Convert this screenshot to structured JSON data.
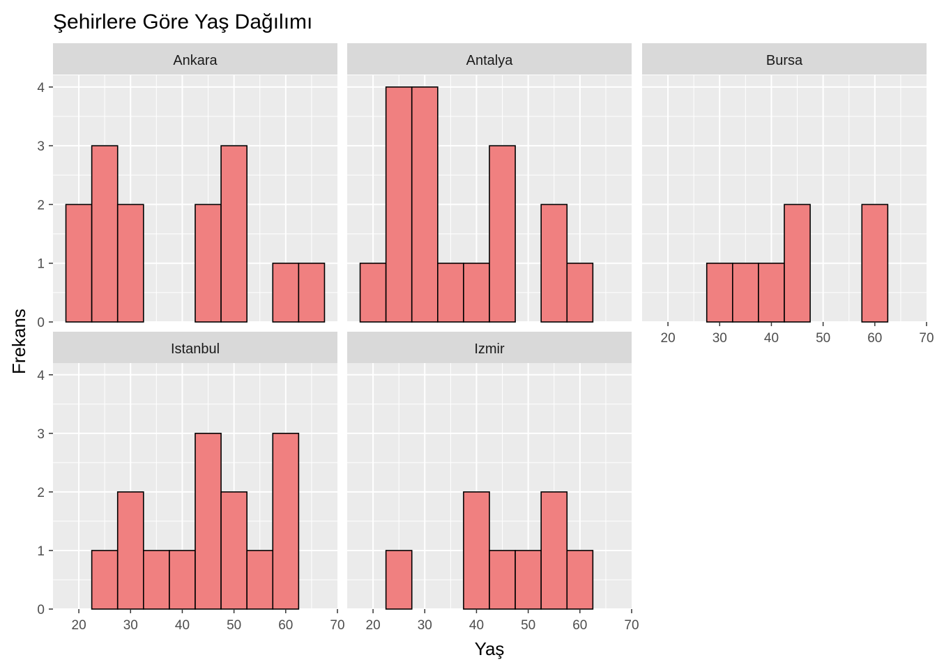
{
  "chart_data": {
    "type": "bar",
    "title": "Şehirlere Göre Yaş Dağılımı",
    "xlabel": "Yaş",
    "ylabel": "Frekans",
    "xlim": [
      15,
      70
    ],
    "ylim": [
      0,
      4.2
    ],
    "x_ticks": [
      20,
      30,
      40,
      50,
      60,
      70
    ],
    "y_ticks": [
      0,
      1,
      2,
      3,
      4
    ],
    "bin_width": 5,
    "bin_centers": [
      20,
      25,
      30,
      35,
      40,
      45,
      50,
      55,
      60,
      65
    ],
    "bar_color": "#F08080",
    "bar_border_color": "#000000",
    "panel_background": "#EBEBEB",
    "strip_background": "#D9D9D9",
    "grid": true,
    "facets": [
      {
        "name": "Ankara",
        "values": [
          2,
          3,
          2,
          0,
          0,
          2,
          3,
          0,
          1,
          1
        ]
      },
      {
        "name": "Antalya",
        "values": [
          1,
          4,
          4,
          1,
          1,
          3,
          0,
          2,
          1,
          0
        ]
      },
      {
        "name": "Bursa",
        "values": [
          0,
          0,
          1,
          1,
          1,
          2,
          0,
          0,
          2,
          0
        ]
      },
      {
        "name": "Istanbul",
        "values": [
          0,
          1,
          2,
          1,
          1,
          3,
          2,
          1,
          3,
          0
        ]
      },
      {
        "name": "Izmir",
        "values": [
          0,
          1,
          0,
          0,
          2,
          1,
          1,
          2,
          1,
          0
        ]
      }
    ]
  }
}
